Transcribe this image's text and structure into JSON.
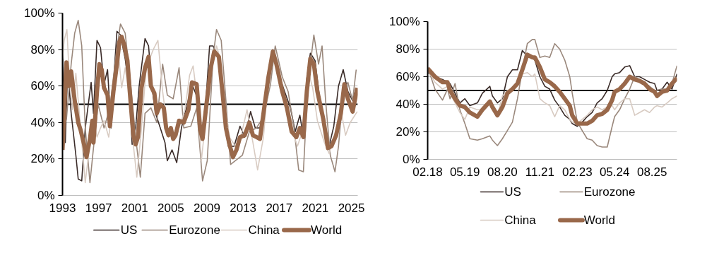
{
  "chart_data": [
    {
      "type": "line",
      "ylim": [
        0,
        100
      ],
      "xlim": [
        1993,
        2025.7
      ],
      "grid": "y",
      "legend": "bottom",
      "xticks": [
        1993,
        1997,
        2001,
        2005,
        2009,
        2013,
        2017,
        2021,
        2025
      ],
      "yticks": [
        {
          "value": 0,
          "label": "0%"
        },
        {
          "value": 20,
          "label": "20%"
        },
        {
          "value": 40,
          "label": "40%"
        },
        {
          "value": 60,
          "label": "60%"
        },
        {
          "value": 80,
          "label": "80%"
        },
        {
          "value": 100,
          "label": "100%"
        }
      ],
      "ref_lines": [
        {
          "axis": "y",
          "value": 50,
          "label": null,
          "color": "#000000"
        }
      ],
      "series": [
        {
          "name": "US",
          "color": "#3a2b28",
          "x": [
            1993.0,
            1993.31,
            1993.57,
            1993.96,
            1994.48,
            1994.74,
            1995.13,
            1995.52,
            1996.17,
            1996.43,
            1996.82,
            1997.21,
            1997.6,
            1997.99,
            1998.38,
            1998.77,
            1999.03,
            1999.42,
            1999.94,
            2000.45,
            2000.71,
            2001.1,
            2001.49,
            2002.14,
            2002.53,
            2002.92,
            2003.31,
            2003.83,
            2004.35,
            2004.61,
            2005.13,
            2005.65,
            2006.17,
            2006.82,
            2007.34,
            2007.99,
            2008.38,
            2008.9,
            2009.29,
            2009.68,
            2010.32,
            2010.84,
            2011.36,
            2012.01,
            2012.66,
            2013.18,
            2013.83,
            2014.35,
            2014.87,
            2015.39,
            2015.91,
            2016.3,
            2016.82,
            2017.6,
            2018.25,
            2018.77,
            2019.29,
            2019.68,
            2020.06,
            2020.45,
            2020.97,
            2021.49,
            2022.14,
            2022.53,
            2023.05,
            2023.57,
            2024.09,
            2024.61,
            2025.13,
            2025.53
          ],
          "values": [
            80,
            29,
            70,
            45,
            22,
            9,
            8,
            37,
            62,
            45,
            85,
            81,
            61,
            69,
            37,
            71,
            90,
            88,
            75,
            55,
            28,
            37,
            60,
            86,
            82,
            59,
            45,
            37,
            29,
            19,
            25,
            18,
            37,
            50,
            61,
            53,
            32,
            53,
            82,
            82,
            74,
            45,
            27,
            27,
            38,
            32,
            46,
            37,
            37,
            50,
            70,
            80,
            68,
            57,
            48,
            35,
            44,
            32,
            64,
            78,
            74,
            53,
            32,
            27,
            38,
            60,
            69,
            57,
            52,
            59
          ]
        },
        {
          "name": "Eurozone",
          "color": "#9a887c",
          "x": [
            1993.0,
            1993.44,
            1993.96,
            1994.35,
            1994.74,
            1995.13,
            1995.52,
            1996.04,
            1996.43,
            1996.95,
            1997.6,
            1998.25,
            1998.9,
            1999.42,
            1999.94,
            2000.45,
            2001.1,
            2001.62,
            2002.14,
            2002.79,
            2003.44,
            2004.09,
            2004.61,
            2005.26,
            2005.91,
            2006.43,
            2007.21,
            2007.86,
            2008.51,
            2009.03,
            2009.68,
            2010.06,
            2010.58,
            2011.1,
            2011.62,
            2012.14,
            2012.92,
            2013.7,
            2014.48,
            2015.26,
            2016.04,
            2016.56,
            2017.34,
            2017.99,
            2018.64,
            2019.16,
            2019.68,
            2020.06,
            2020.45,
            2020.84,
            2021.36,
            2021.75,
            2022.14,
            2022.66,
            2023.18,
            2023.57,
            2024.09,
            2024.61,
            2025.13,
            2025.53
          ],
          "values": [
            35,
            42,
            72,
            89,
            96,
            82,
            37,
            7,
            26,
            50,
            37,
            48,
            76,
            94,
            89,
            66,
            32,
            10,
            45,
            48,
            40,
            72,
            55,
            53,
            70,
            37,
            38,
            48,
            8,
            19,
            76,
            91,
            85,
            52,
            17,
            19,
            22,
            35,
            37,
            43,
            61,
            82,
            65,
            57,
            37,
            14,
            13,
            50,
            72,
            88,
            72,
            82,
            52,
            22,
            13,
            27,
            57,
            62,
            52,
            69
          ]
        },
        {
          "name": "China",
          "color": "#d8cbc2",
          "x": [
            1993.0,
            1993.18,
            1993.49,
            1993.7,
            1994.09,
            1994.48,
            1995.0,
            1995.52,
            1996.04,
            1996.43,
            1996.82,
            1997.21,
            1997.6,
            1998.12,
            1998.64,
            1999.16,
            1999.55,
            1999.94,
            2000.45,
            2000.84,
            2001.23,
            2001.75,
            2002.27,
            2003.05,
            2003.57,
            2004.09,
            2004.61,
            2005.13,
            2005.91,
            2006.56,
            2007.08,
            2007.47,
            2007.99,
            2008.38,
            2009.03,
            2009.68,
            2010.06,
            2010.45,
            2010.97,
            2011.49,
            2012.14,
            2012.79,
            2013.44,
            2014.09,
            2014.61,
            2015.26,
            2015.78,
            2016.3,
            2016.95,
            2017.6,
            2018.38,
            2019.03,
            2019.68,
            2020.32,
            2020.71,
            2021.23,
            2022.01,
            2022.53,
            2023.31,
            2023.83,
            2024.35,
            2024.87,
            2025.65
          ],
          "values": [
            75,
            85,
            91,
            70,
            47,
            67,
            37,
            7,
            29,
            41,
            32,
            37,
            41,
            32,
            51,
            80,
            59,
            70,
            53,
            28,
            10,
            37,
            70,
            80,
            85,
            57,
            37,
            32,
            37,
            47,
            66,
            71,
            50,
            19,
            50,
            74,
            82,
            75,
            51,
            32,
            27,
            33,
            47,
            29,
            14,
            32,
            63,
            78,
            69,
            51,
            36,
            27,
            37,
            66,
            59,
            41,
            29,
            23,
            36,
            47,
            33,
            40,
            46
          ]
        },
        {
          "name": "World",
          "color": "#99684a",
          "x": [
            1993.0,
            1993.18,
            1993.44,
            1993.7,
            1993.96,
            1994.35,
            1994.74,
            1995.0,
            1995.39,
            1995.65,
            1996.04,
            1996.3,
            1996.43,
            1996.82,
            1997.08,
            1997.34,
            1997.6,
            1997.99,
            1998.25,
            1998.64,
            1999.03,
            1999.29,
            1999.55,
            1999.81,
            2000.19,
            2000.45,
            2000.84,
            2001.1,
            2001.36,
            2001.75,
            2002.14,
            2002.53,
            2002.79,
            2003.18,
            2003.44,
            2003.83,
            2004.22,
            2004.48,
            2004.74,
            2005.0,
            2005.26,
            2005.52,
            2005.91,
            2006.43,
            2006.95,
            2007.34,
            2007.86,
            2008.25,
            2008.51,
            2008.9,
            2009.42,
            2009.81,
            2010.32,
            2010.71,
            2011.1,
            2011.49,
            2011.88,
            2012.27,
            2012.66,
            2013.18,
            2013.7,
            2014.09,
            2014.48,
            2014.87,
            2015.26,
            2015.78,
            2016.3,
            2016.69,
            2017.34,
            2017.86,
            2018.38,
            2018.9,
            2019.29,
            2019.68,
            2020.06,
            2020.45,
            2020.84,
            2021.23,
            2021.88,
            2022.4,
            2022.79,
            2023.31,
            2023.83,
            2024.22,
            2024.61,
            2025.13,
            2025.65
          ],
          "values": [
            25,
            45,
            73,
            60,
            68,
            52,
            40,
            36,
            28,
            21,
            31,
            41,
            29,
            57,
            72,
            69,
            59,
            55,
            38,
            57,
            72,
            84,
            87,
            83,
            74,
            57,
            33,
            28,
            32,
            59,
            70,
            76,
            60,
            56,
            45,
            50,
            48,
            37,
            33,
            37,
            31,
            33,
            41,
            40,
            47,
            62,
            61,
            36,
            31,
            48,
            70,
            79,
            76,
            57,
            37,
            28,
            21,
            25,
            32,
            33,
            40,
            33,
            32,
            31,
            45,
            64,
            79,
            72,
            57,
            48,
            35,
            32,
            37,
            32,
            57,
            75,
            72,
            57,
            42,
            26,
            27,
            33,
            45,
            61,
            53,
            46,
            59
          ]
        }
      ]
    },
    {
      "type": "line",
      "ylim": [
        0,
        100
      ],
      "xlim": [
        "2018-02",
        "2026-06"
      ],
      "grid": "y",
      "legend": "bottom",
      "xticks": [
        {
          "value": "2018-02",
          "label": "02.18"
        },
        {
          "value": "2019-05",
          "label": "05.19"
        },
        {
          "value": "2020-08",
          "label": "08.20"
        },
        {
          "value": "2021-11",
          "label": "11.21"
        },
        {
          "value": "2023-02",
          "label": "02.23"
        },
        {
          "value": "2024-05",
          "label": "05.24"
        },
        {
          "value": "2025-08",
          "label": "08.25"
        }
      ],
      "yticks": [
        {
          "value": 0,
          "label": "0%"
        },
        {
          "value": 20,
          "label": "20%"
        },
        {
          "value": 40,
          "label": "40%"
        },
        {
          "value": 60,
          "label": "60%"
        },
        {
          "value": 80,
          "label": "80%"
        },
        {
          "value": 100,
          "label": "100%"
        }
      ],
      "ref_lines": [
        {
          "axis": "y",
          "value": 50,
          "label": null,
          "color": "#000000"
        }
      ],
      "x": [
        "2018-02",
        "2018-05",
        "2018-08",
        "2018-10",
        "2018-11",
        "2019-01",
        "2019-03",
        "2019-05",
        "2019-07",
        "2019-10",
        "2019-12",
        "2020-03",
        "2020-04",
        "2020-06",
        "2020-08",
        "2020-10",
        "2020-12",
        "2021-02",
        "2021-04",
        "2021-06",
        "2021-08",
        "2021-09",
        "2021-11",
        "2022-01",
        "2022-03",
        "2022-05",
        "2022-07",
        "2022-09",
        "2022-11",
        "2022-12",
        "2023-02",
        "2023-04",
        "2023-06",
        "2023-08",
        "2023-10",
        "2023-12",
        "2024-02",
        "2024-04",
        "2024-05",
        "2024-07",
        "2024-09",
        "2024-11",
        "2025-01",
        "2025-03",
        "2025-05",
        "2025-07",
        "2025-09",
        "2025-10",
        "2025-12",
        "2026-02",
        "2026-04",
        "2026-06"
      ],
      "series": [
        {
          "name": "US",
          "color": "#3a2b28",
          "values": [
            63,
            60,
            58,
            56,
            55,
            48,
            41,
            44,
            39,
            41,
            48,
            53,
            46,
            41,
            44,
            60,
            65,
            65,
            79,
            75,
            74,
            72,
            60,
            53,
            51,
            43,
            38,
            32,
            29,
            26,
            24,
            27,
            31,
            34,
            41,
            44,
            50,
            60,
            62,
            63,
            67,
            68,
            60,
            60,
            58,
            56,
            55,
            50,
            51,
            56,
            51,
            62
          ]
        },
        {
          "name": "Eurozone",
          "color": "#9a887c",
          "values": [
            67,
            51,
            43,
            51,
            44,
            55,
            36,
            26,
            15,
            14,
            15,
            17,
            14,
            10,
            15,
            21,
            27,
            44,
            65,
            84,
            87,
            87,
            74,
            75,
            74,
            84,
            80,
            72,
            60,
            48,
            27,
            21,
            15,
            14,
            10,
            9,
            9,
            24,
            31,
            36,
            44,
            51,
            60,
            58,
            56,
            53,
            50,
            50,
            51,
            51,
            55,
            68
          ]
        },
        {
          "name": "China",
          "color": "#d8cbc2",
          "values": [
            65,
            56,
            51,
            53,
            48,
            41,
            34,
            29,
            38,
            36,
            36,
            43,
            38,
            31,
            46,
            50,
            51,
            55,
            62,
            63,
            60,
            62,
            44,
            41,
            39,
            31,
            39,
            36,
            29,
            27,
            26,
            29,
            32,
            36,
            38,
            36,
            38,
            39,
            36,
            41,
            44,
            44,
            32,
            34,
            36,
            34,
            38,
            39,
            38,
            41,
            44,
            46
          ]
        },
        {
          "name": "World",
          "color": "#99684a",
          "values": [
            66,
            60,
            56,
            56,
            50,
            44,
            39,
            38,
            34,
            31,
            36,
            42,
            38,
            32,
            38,
            48,
            51,
            55,
            65,
            76,
            74,
            74,
            67,
            58,
            56,
            53,
            49,
            44,
            39,
            32,
            26,
            26,
            26,
            28,
            32,
            33,
            36,
            43,
            49,
            51,
            55,
            60,
            58,
            57,
            55,
            51,
            49,
            46,
            49,
            50,
            55,
            59
          ]
        }
      ]
    }
  ]
}
